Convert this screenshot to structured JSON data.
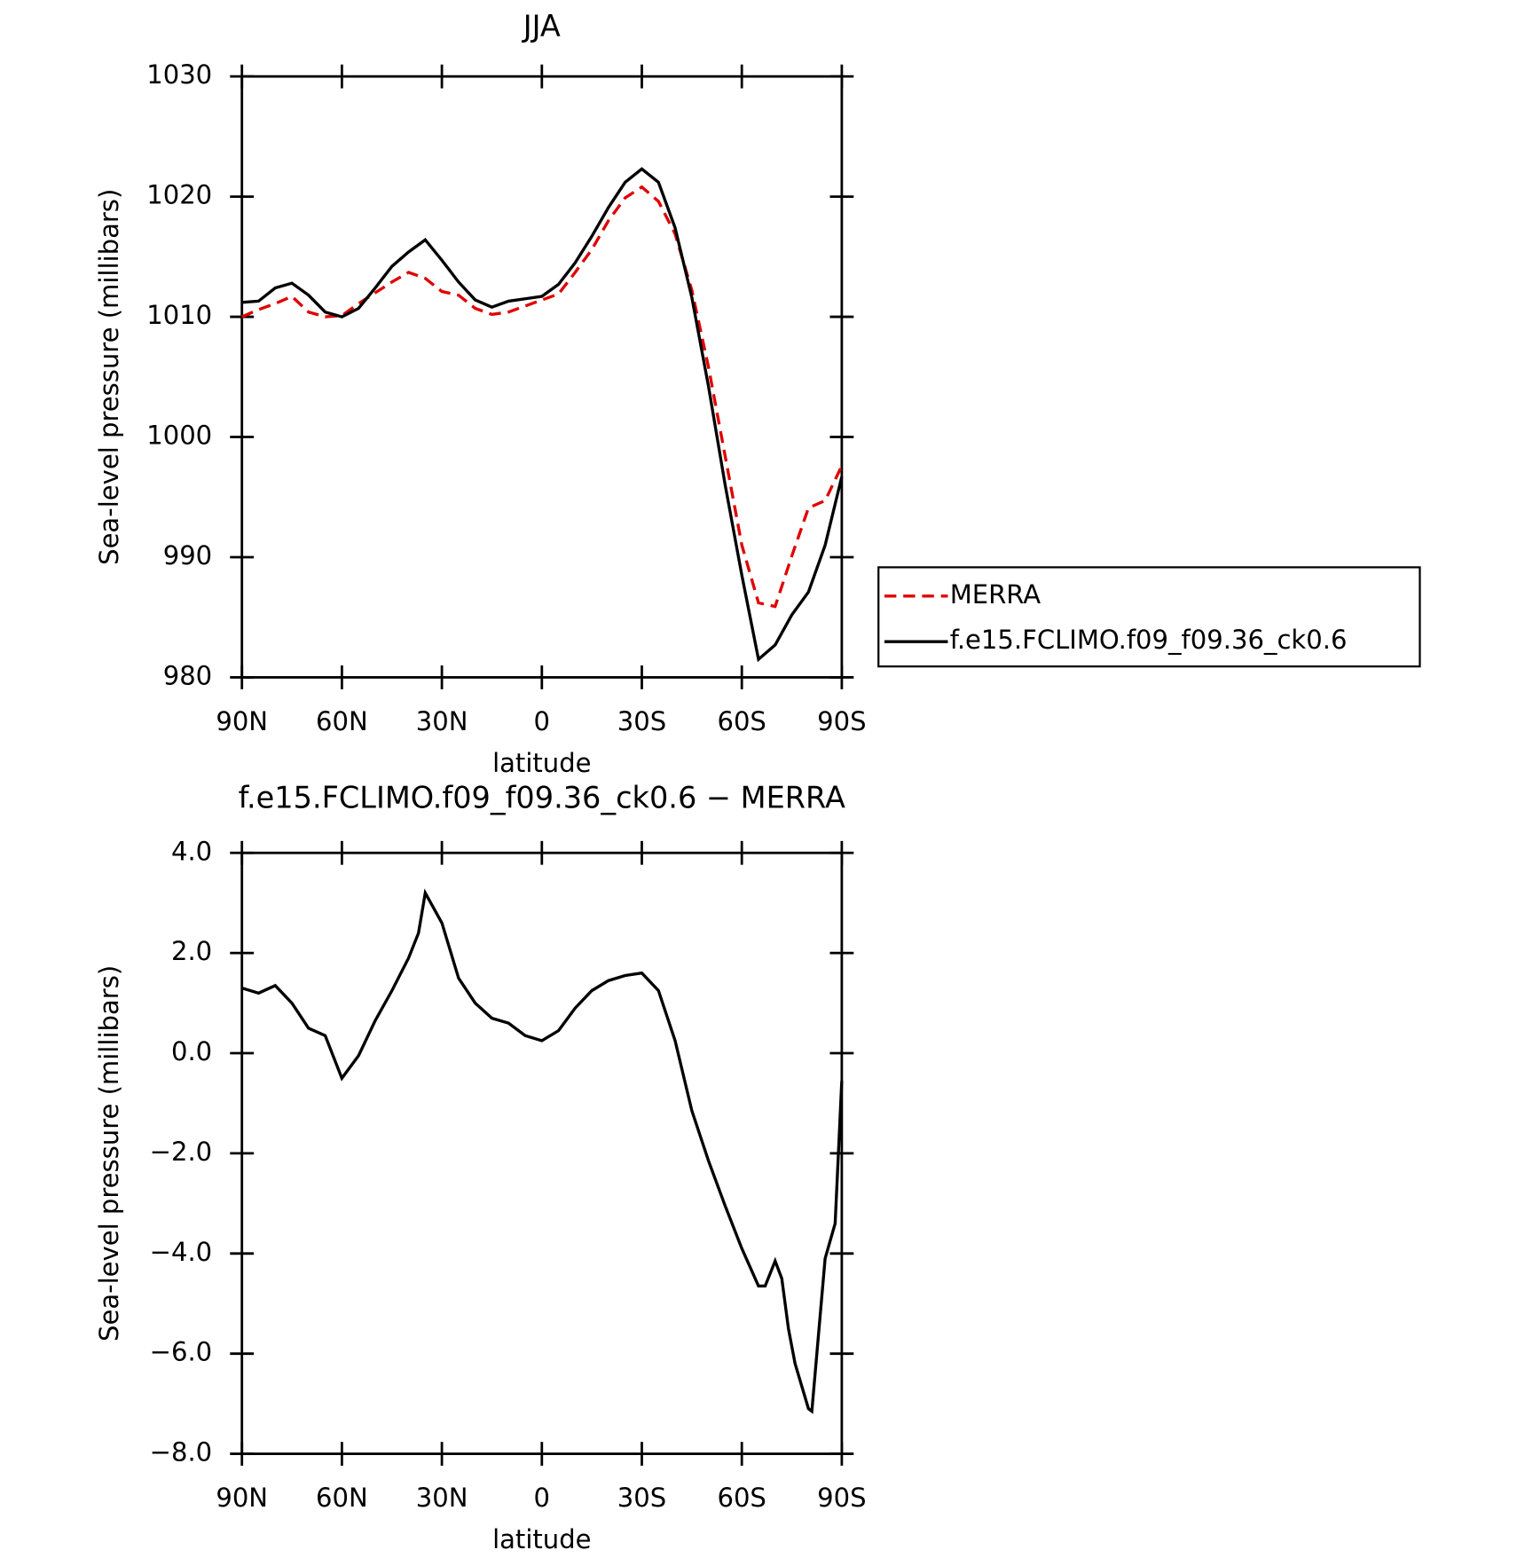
{
  "chart_data": [
    {
      "type": "line",
      "title": "JJA",
      "x_label": "latitude",
      "y_label": "Sea-level pressure (millibars)",
      "x": [
        90,
        85,
        80,
        75,
        70,
        65,
        60,
        55,
        50,
        45,
        40,
        35,
        30,
        25,
        20,
        15,
        10,
        5,
        0,
        -5,
        -10,
        -15,
        -20,
        -25,
        -30,
        -35,
        -40,
        -45,
        -50,
        -55,
        -60,
        -65,
        -70,
        -75,
        -80,
        -85,
        -90
      ],
      "xlim": [
        90,
        -90
      ],
      "xticks": [
        {
          "value": 90,
          "label": "90N"
        },
        {
          "value": 60,
          "label": "60N"
        },
        {
          "value": 30,
          "label": "30N"
        },
        0,
        {
          "value": -30,
          "label": "30S"
        },
        {
          "value": -60,
          "label": "60S"
        },
        {
          "value": -90,
          "label": "90S"
        }
      ],
      "ylim": [
        980,
        1030
      ],
      "yticks": [
        980,
        990,
        1000,
        1010,
        1020,
        1030
      ],
      "legend": "outside-right",
      "series": [
        {
          "name": "MERRA",
          "color": "#e00000",
          "style": "dashed",
          "values": [
            1010,
            1010.6,
            1011.1,
            1011.7,
            1010.4,
            1010,
            1010.1,
            1011.1,
            1012,
            1012.9,
            1013.7,
            1013.2,
            1012.1,
            1011.8,
            1010.7,
            1010.2,
            1010.4,
            1010.9,
            1011.4,
            1011.9,
            1013.7,
            1015.6,
            1018,
            1019.9,
            1020.8,
            1019.6,
            1016.9,
            1012.2,
            1005.8,
            998.4,
            991,
            986.2,
            985.9,
            990.1,
            994.1,
            994.7,
            997.6
          ]
        },
        {
          "name": "f.e15.FCLIMO.f09_f09.36_ck0.6",
          "color": "#000000",
          "style": "solid",
          "values": [
            1011.2,
            1011.3,
            1012.4,
            1012.8,
            1011.8,
            1010.4,
            1010,
            1010.7,
            1012.4,
            1014.2,
            1015.4,
            1016.4,
            1014.7,
            1012.9,
            1011.4,
            1010.8,
            1011.3,
            1011.5,
            1011.7,
            1012.7,
            1014.5,
            1016.7,
            1019.1,
            1021.2,
            1022.3,
            1021.2,
            1017.4,
            1011.6,
            1004.2,
            996,
            988.5,
            981.5,
            982.7,
            985.2,
            987.1,
            991,
            996.7
          ]
        }
      ]
    },
    {
      "type": "line",
      "title": "f.e15.FCLIMO.f09_f09.36_ck0.6 − MERRA",
      "x_label": "latitude",
      "y_label": "Sea-level pressure (millibars)",
      "x": [
        90,
        85,
        80,
        75,
        70,
        65,
        60,
        55,
        50,
        45,
        40,
        37,
        35,
        30,
        25,
        20,
        15,
        10,
        5,
        0,
        -5,
        -10,
        -15,
        -20,
        -25,
        -30,
        -35,
        -40,
        -45,
        -50,
        -55,
        -60,
        -65,
        -67,
        -70,
        -72,
        -74,
        -76,
        -80,
        -81,
        -85,
        -88,
        -90
      ],
      "xlim": [
        90,
        -90
      ],
      "xticks": [
        {
          "value": 90,
          "label": "90N"
        },
        {
          "value": 60,
          "label": "60N"
        },
        {
          "value": 30,
          "label": "30N"
        },
        0,
        {
          "value": -30,
          "label": "30S"
        },
        {
          "value": -60,
          "label": "60S"
        },
        {
          "value": -90,
          "label": "90S"
        }
      ],
      "ylim": [
        -8,
        4
      ],
      "yticks": [
        {
          "value": -8,
          "label": "−8.0"
        },
        {
          "value": -6,
          "label": "−6.0"
        },
        {
          "value": -4,
          "label": "−4.0"
        },
        {
          "value": -2,
          "label": "−2.0"
        },
        {
          "value": 0,
          "label": "0.0"
        },
        {
          "value": 2,
          "label": "2.0"
        },
        {
          "value": 4,
          "label": "4.0"
        }
      ],
      "series": [
        {
          "color": "#000000",
          "style": "solid",
          "values": [
            1.3,
            1.2,
            1.35,
            1,
            0.5,
            0.35,
            -0.5,
            -0.05,
            0.65,
            1.25,
            1.9,
            2.4,
            3.2,
            2.6,
            1.5,
            1,
            0.7,
            0.6,
            0.35,
            0.25,
            0.45,
            0.9,
            1.25,
            1.45,
            1.55,
            1.6,
            1.25,
            0.25,
            -1.15,
            -2.15,
            -3.05,
            -3.9,
            -4.65,
            -4.65,
            -4.15,
            -4.5,
            -5.5,
            -6.2,
            -7.1,
            -7.15,
            -4.1,
            -3.4,
            -0.55
          ]
        }
      ]
    }
  ]
}
